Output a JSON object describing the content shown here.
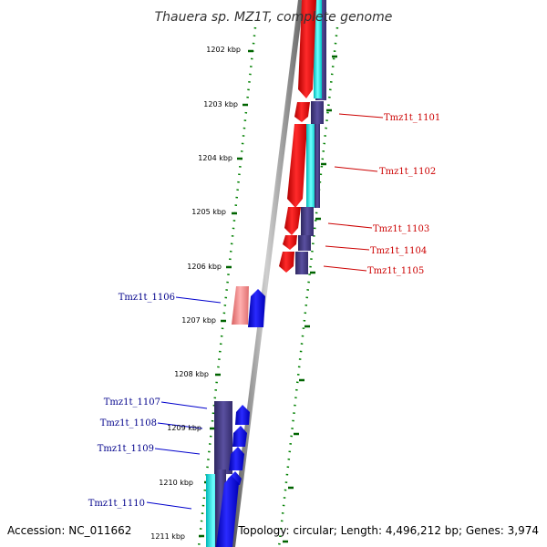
{
  "title": "Thauera sp. MZ1T, complete genome",
  "footer": {
    "accession": "Accession: NC_011662",
    "summary": "Topology: circular; Length: 4,496,212 bp; Genes: 3,974"
  },
  "kbp_ticks": [
    "1202 kbp",
    "1203 kbp",
    "1204 kbp",
    "1205 kbp",
    "1206 kbp",
    "1207 kbp",
    "1208 kbp",
    "1209 kbp",
    "1210 kbp",
    "1211 kbp"
  ],
  "genes_right": [
    "Tmz1t_1101",
    "Tmz1t_1102",
    "Tmz1t_1103",
    "Tmz1t_1104",
    "Tmz1t_1105"
  ],
  "genes_left": [
    "Tmz1t_1106",
    "Tmz1t_1107",
    "Tmz1t_1108",
    "Tmz1t_1109",
    "Tmz1t_1110"
  ],
  "colors": {
    "forward_cds": "#ff0000",
    "reverse_cds": "#0000ff",
    "cog_dark": "#483d8b",
    "cog_cyan": "#00ffff",
    "light_red": "#f08080",
    "backbone": "#808080",
    "tick_green": "#008000",
    "right_label": "#cc0000",
    "left_label": "#00008b"
  }
}
